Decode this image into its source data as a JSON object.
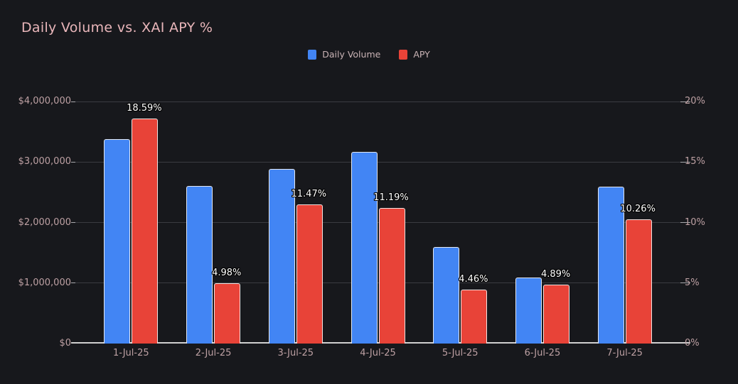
{
  "title": "Daily Volume vs. XAI APY %",
  "legend": {
    "items": [
      {
        "label": "Daily Volume",
        "color": "#4285f4"
      },
      {
        "label": "APY",
        "color": "#e84338"
      }
    ]
  },
  "colors": {
    "background": "#17181c",
    "title_text": "#e9b6ba",
    "axis_text": "#bda0a3",
    "legend_text": "#c9b3b5",
    "gridline": "#3a3b41",
    "axis_line": "#d0d0d0",
    "bar_border": "#f0f0f0",
    "value_label_text": "#ffffff",
    "value_label_outline": "#000000",
    "volume_bar": "#4285f4",
    "apy_bar": "#e84338"
  },
  "chart_data": {
    "type": "bar",
    "title": "Daily Volume vs. XAI APY %",
    "categories": [
      "1-Jul-25",
      "2-Jul-25",
      "3-Jul-25",
      "4-Jul-25",
      "5-Jul-25",
      "6-Jul-25",
      "7-Jul-25"
    ],
    "series": [
      {
        "name": "Daily Volume",
        "axis": "left",
        "color": "#4285f4",
        "values": [
          3380000,
          2600000,
          2890000,
          3170000,
          1600000,
          1090000,
          2590000
        ]
      },
      {
        "name": "APY",
        "axis": "right",
        "color": "#e84338",
        "values": [
          18.59,
          4.98,
          11.47,
          11.19,
          4.46,
          4.89,
          10.26
        ],
        "data_labels": [
          "18.59%",
          "4.98%",
          "11.47%",
          "11.19%",
          "4.46%",
          "4.89%",
          "10.26%"
        ]
      }
    ],
    "left_axis": {
      "max": 4000000,
      "ticks": [
        {
          "label": "$0",
          "value": 0
        },
        {
          "label": "$1,000,000",
          "value": 1000000
        },
        {
          "label": "$2,000,000",
          "value": 2000000
        },
        {
          "label": "$3,000,000",
          "value": 3000000
        },
        {
          "label": "$4,000,000",
          "value": 4000000
        }
      ]
    },
    "right_axis": {
      "max": 20,
      "ticks": [
        {
          "label": "0%",
          "value": 0
        },
        {
          "label": "5%",
          "value": 5
        },
        {
          "label": "10%",
          "value": 10
        },
        {
          "label": "15%",
          "value": 15
        },
        {
          "label": "20%",
          "value": 20
        }
      ]
    },
    "grid": true,
    "legend_position": "top-center"
  }
}
